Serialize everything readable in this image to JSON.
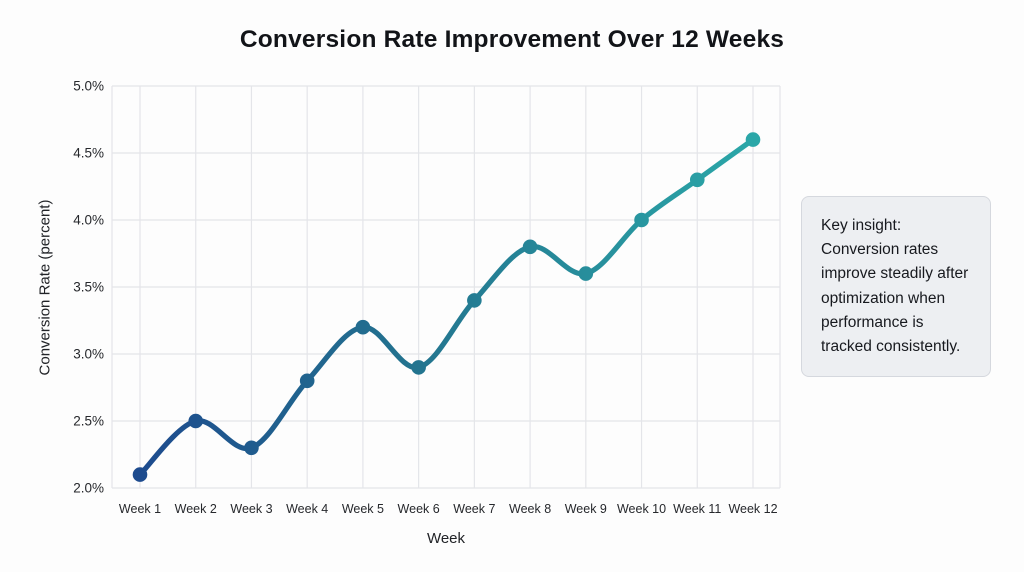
{
  "title": "Conversion Rate Improvement Over 12 Weeks",
  "chart_data": {
    "type": "line",
    "x": [
      "Week 1",
      "Week 2",
      "Week 3",
      "Week 4",
      "Week 5",
      "Week 6",
      "Week 7",
      "Week 8",
      "Week 9",
      "Week 10",
      "Week 11",
      "Week 12"
    ],
    "series": [
      {
        "name": "Conversion Rate",
        "values": [
          2.1,
          2.5,
          2.3,
          2.8,
          3.2,
          2.9,
          3.4,
          3.8,
          3.6,
          4.0,
          4.3,
          4.6
        ]
      }
    ],
    "title": "Conversion Rate Improvement Over 12 Weeks",
    "xlabel": "Week",
    "ylabel": "Conversion Rate (percent)",
    "ylim": [
      2.0,
      5.0
    ],
    "ytick_step": 0.5,
    "ytick_labels": [
      "2.0%",
      "2.5%",
      "3.0%",
      "3.5%",
      "4.0%",
      "4.5%",
      "5.0%"
    ],
    "grid": true,
    "legend": "none",
    "marker": "circle",
    "line_gradient": {
      "start": "#1d4b8e",
      "mid": "#23748f",
      "end": "#2ba7a8"
    }
  },
  "insight": {
    "text": "Key insight: Conversion rates improve steadily after optimization when performance is tracked consistently."
  },
  "colors": {
    "background": "#fdfdfd",
    "grid": "#e4e5e9",
    "tick_text": "#26282c",
    "title_text": "#121418",
    "insight_bg": "#edeff2",
    "insight_border": "#d5d8de"
  }
}
